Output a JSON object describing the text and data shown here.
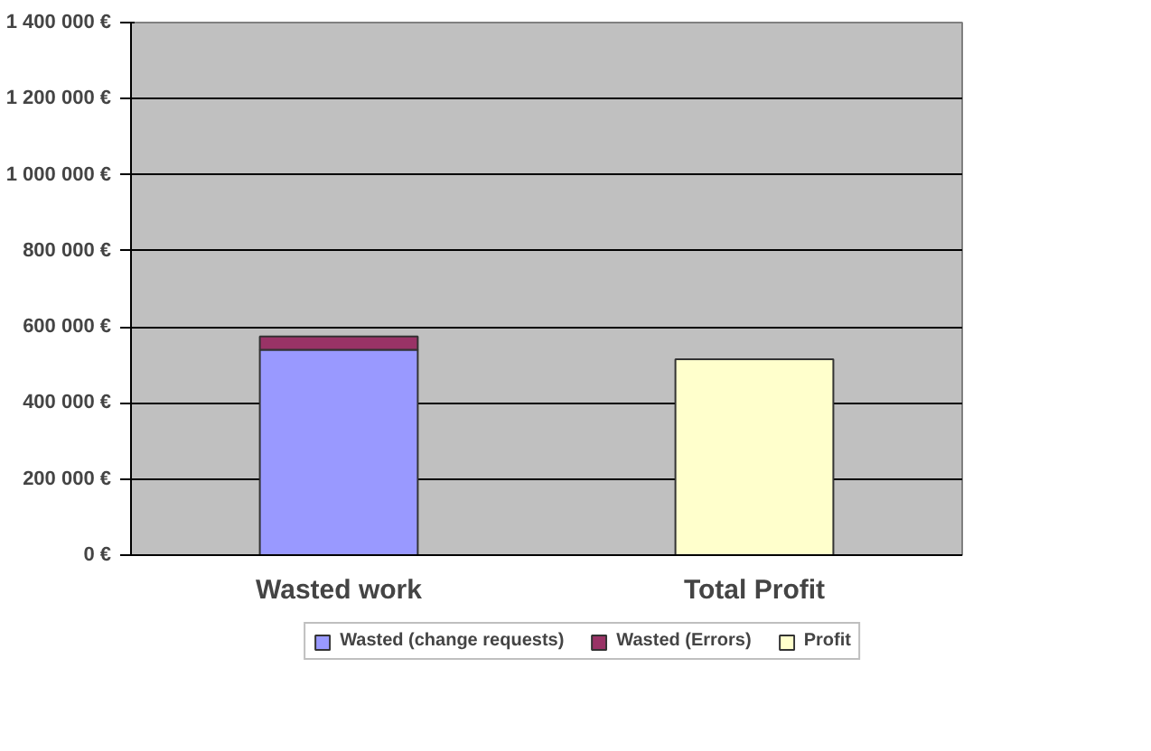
{
  "chart_data": {
    "type": "bar",
    "stacked": true,
    "categories": [
      "Wasted work",
      "Total Profit"
    ],
    "series": [
      {
        "name": "Wasted (change requests)",
        "color": "#9999ff",
        "values": [
          540000,
          0
        ]
      },
      {
        "name": "Wasted (Errors)",
        "color": "#993366",
        "values": [
          35000,
          0
        ]
      },
      {
        "name": "Profit",
        "color": "#ffffcc",
        "values": [
          0,
          515000
        ]
      }
    ],
    "ylim": [
      0,
      1400000
    ],
    "yticks": [
      {
        "value": 0,
        "label": "0 €"
      },
      {
        "value": 200000,
        "label": "200 000 €"
      },
      {
        "value": 400000,
        "label": "400 000 €"
      },
      {
        "value": 600000,
        "label": "600 000 €"
      },
      {
        "value": 800000,
        "label": "800 000 €"
      },
      {
        "value": 1000000,
        "label": "1 000 000 €"
      },
      {
        "value": 1200000,
        "label": "1 200 000 €"
      },
      {
        "value": 1400000,
        "label": "1 400 000 €"
      }
    ],
    "grid": "y",
    "legend": "bottom"
  }
}
